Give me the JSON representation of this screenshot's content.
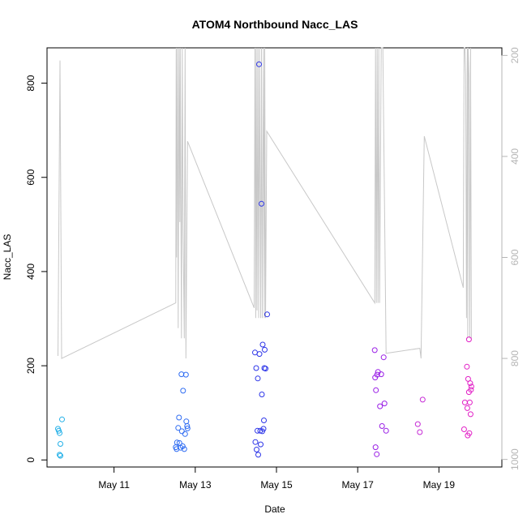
{
  "chart_data": {
    "type": "scatter",
    "title": "ATOM4 Northbound Nacc_LAS",
    "xlabel": "Date",
    "ylabel": "Nacc_LAS",
    "x_ticks": [
      {
        "day": 11,
        "label": "May 11"
      },
      {
        "day": 13,
        "label": "May 13"
      },
      {
        "day": 15,
        "label": "May 15"
      },
      {
        "day": 17,
        "label": "May 17"
      },
      {
        "day": 19,
        "label": "May 19"
      }
    ],
    "xlim": [
      9.35,
      20.55
    ],
    "ylim": [
      -15,
      875
    ],
    "y_ticks": [
      0,
      200,
      400,
      600,
      800
    ],
    "y2_ticks": [
      200,
      400,
      600,
      800,
      1000
    ],
    "y2lim": [
      1015,
      185
    ],
    "series": [
      {
        "name": "Nacc_LAS",
        "points": [
          {
            "x": 9.62,
            "y": 66,
            "color": "#22b0e8"
          },
          {
            "x": 9.64,
            "y": 62,
            "color": "#22b0e8"
          },
          {
            "x": 9.66,
            "y": 57,
            "color": "#22b0e8"
          },
          {
            "x": 9.68,
            "y": 34,
            "color": "#22b0e8"
          },
          {
            "x": 9.66,
            "y": 11,
            "color": "#22b0e8"
          },
          {
            "x": 9.68,
            "y": 9,
            "color": "#22b0e8"
          },
          {
            "x": 9.72,
            "y": 86,
            "color": "#22b0e8"
          },
          {
            "x": 12.52,
            "y": 27,
            "color": "#2f6cf2"
          },
          {
            "x": 12.54,
            "y": 23,
            "color": "#2f6cf2"
          },
          {
            "x": 12.55,
            "y": 37,
            "color": "#2f6cf2"
          },
          {
            "x": 12.58,
            "y": 68,
            "color": "#2f6cf2"
          },
          {
            "x": 12.6,
            "y": 90,
            "color": "#2f6cf2"
          },
          {
            "x": 12.61,
            "y": 36,
            "color": "#2f6cf2"
          },
          {
            "x": 12.64,
            "y": 26,
            "color": "#2f6cf2"
          },
          {
            "x": 12.66,
            "y": 182,
            "color": "#2f6cf2"
          },
          {
            "x": 12.67,
            "y": 61,
            "color": "#2f6cf2"
          },
          {
            "x": 12.69,
            "y": 29,
            "color": "#2f6cf2"
          },
          {
            "x": 12.7,
            "y": 147,
            "color": "#2f6cf2"
          },
          {
            "x": 12.73,
            "y": 23,
            "color": "#2f6cf2"
          },
          {
            "x": 12.75,
            "y": 55,
            "color": "#2f6cf2"
          },
          {
            "x": 12.77,
            "y": 181,
            "color": "#2f6cf2"
          },
          {
            "x": 12.78,
            "y": 82,
            "color": "#2f6cf2"
          },
          {
            "x": 12.8,
            "y": 72,
            "color": "#2f6cf2"
          },
          {
            "x": 12.81,
            "y": 67,
            "color": "#2f6cf2"
          },
          {
            "x": 14.47,
            "y": 228,
            "color": "#2d35e8"
          },
          {
            "x": 14.48,
            "y": 38,
            "color": "#2d35e8"
          },
          {
            "x": 14.5,
            "y": 195,
            "color": "#2d35e8"
          },
          {
            "x": 14.51,
            "y": 22,
            "color": "#2d35e8"
          },
          {
            "x": 14.53,
            "y": 62,
            "color": "#2d35e8"
          },
          {
            "x": 14.54,
            "y": 173,
            "color": "#2d35e8"
          },
          {
            "x": 14.55,
            "y": 11,
            "color": "#2d35e8"
          },
          {
            "x": 14.57,
            "y": 840,
            "color": "#2d35e8"
          },
          {
            "x": 14.58,
            "y": 225,
            "color": "#2d35e8"
          },
          {
            "x": 14.6,
            "y": 62,
            "color": "#2d35e8"
          },
          {
            "x": 14.61,
            "y": 33,
            "color": "#2d35e8"
          },
          {
            "x": 14.63,
            "y": 544,
            "color": "#2d35e8"
          },
          {
            "x": 14.64,
            "y": 139,
            "color": "#2d35e8"
          },
          {
            "x": 14.65,
            "y": 61,
            "color": "#2d35e8"
          },
          {
            "x": 14.66,
            "y": 245,
            "color": "#2d35e8"
          },
          {
            "x": 14.68,
            "y": 66,
            "color": "#2d35e8"
          },
          {
            "x": 14.69,
            "y": 84,
            "color": "#2d35e8"
          },
          {
            "x": 14.7,
            "y": 195,
            "color": "#2d35e8"
          },
          {
            "x": 14.71,
            "y": 234,
            "color": "#2d35e8"
          },
          {
            "x": 14.73,
            "y": 194,
            "color": "#2d35e8"
          },
          {
            "x": 14.77,
            "y": 309,
            "color": "#2d35e8"
          },
          {
            "x": 17.42,
            "y": 233,
            "color": "#9a1fe6"
          },
          {
            "x": 17.43,
            "y": 175,
            "color": "#9a1fe6"
          },
          {
            "x": 17.44,
            "y": 27,
            "color": "#9a1fe6"
          },
          {
            "x": 17.45,
            "y": 148,
            "color": "#9a1fe6"
          },
          {
            "x": 17.47,
            "y": 12,
            "color": "#9a1fe6"
          },
          {
            "x": 17.48,
            "y": 181,
            "color": "#9a1fe6"
          },
          {
            "x": 17.5,
            "y": 187,
            "color": "#9a1fe6"
          },
          {
            "x": 17.55,
            "y": 114,
            "color": "#9a1fe6"
          },
          {
            "x": 17.58,
            "y": 182,
            "color": "#9a1fe6"
          },
          {
            "x": 17.6,
            "y": 72,
            "color": "#9a1fe6"
          },
          {
            "x": 17.64,
            "y": 218,
            "color": "#9a1fe6"
          },
          {
            "x": 17.66,
            "y": 120,
            "color": "#9a1fe6"
          },
          {
            "x": 17.7,
            "y": 62,
            "color": "#9a1fe6"
          },
          {
            "x": 18.48,
            "y": 76,
            "color": "#c62bd6"
          },
          {
            "x": 18.53,
            "y": 59,
            "color": "#c62bd6"
          },
          {
            "x": 18.6,
            "y": 128,
            "color": "#c62bd6"
          },
          {
            "x": 19.62,
            "y": 65,
            "color": "#e21fc6"
          },
          {
            "x": 19.64,
            "y": 122,
            "color": "#e21fc6"
          },
          {
            "x": 19.69,
            "y": 198,
            "color": "#e21fc6"
          },
          {
            "x": 19.7,
            "y": 110,
            "color": "#e21fc6"
          },
          {
            "x": 19.71,
            "y": 52,
            "color": "#e21fc6"
          },
          {
            "x": 19.72,
            "y": 172,
            "color": "#e21fc6"
          },
          {
            "x": 19.74,
            "y": 256,
            "color": "#e21fc6"
          },
          {
            "x": 19.74,
            "y": 144,
            "color": "#e21fc6"
          },
          {
            "x": 19.75,
            "y": 57,
            "color": "#e21fc6"
          },
          {
            "x": 19.76,
            "y": 122,
            "color": "#e21fc6"
          },
          {
            "x": 19.77,
            "y": 163,
            "color": "#e21fc6"
          },
          {
            "x": 19.78,
            "y": 97,
            "color": "#e21fc6"
          },
          {
            "x": 19.79,
            "y": 149,
            "color": "#e21fc6"
          },
          {
            "x": 19.8,
            "y": 156,
            "color": "#e21fc6"
          }
        ]
      },
      {
        "name": "secondary (right axis, inverted)",
        "color": "#c8c8c8",
        "line": [
          [
            9.62,
            795
          ],
          [
            9.67,
            210
          ],
          [
            9.71,
            800
          ],
          [
            12.52,
            690
          ],
          [
            12.53,
            185
          ],
          [
            12.54,
            600
          ],
          [
            12.56,
            185
          ],
          [
            12.58,
            740
          ],
          [
            12.6,
            185
          ],
          [
            12.62,
            530
          ],
          [
            12.63,
            185
          ],
          [
            12.66,
            760
          ],
          [
            12.68,
            185
          ],
          [
            12.7,
            540
          ],
          [
            12.73,
            760
          ],
          [
            12.75,
            185
          ],
          [
            12.77,
            800
          ],
          [
            12.81,
            370
          ],
          [
            14.45,
            700
          ],
          [
            14.47,
            185
          ],
          [
            14.49,
            720
          ],
          [
            14.5,
            185
          ],
          [
            14.52,
            705
          ],
          [
            14.54,
            185
          ],
          [
            14.56,
            720
          ],
          [
            14.58,
            185
          ],
          [
            14.61,
            720
          ],
          [
            14.63,
            185
          ],
          [
            14.65,
            720
          ],
          [
            14.68,
            185
          ],
          [
            14.7,
            720
          ],
          [
            14.71,
            185
          ],
          [
            14.73,
            720
          ],
          [
            14.76,
            350
          ],
          [
            17.42,
            690
          ],
          [
            17.44,
            185
          ],
          [
            17.46,
            690
          ],
          [
            17.48,
            185
          ],
          [
            17.5,
            690
          ],
          [
            17.52,
            185
          ],
          [
            17.54,
            690
          ],
          [
            17.58,
            185
          ],
          [
            17.62,
            185
          ],
          [
            17.7,
            790
          ],
          [
            18.53,
            780
          ],
          [
            18.56,
            800
          ],
          [
            18.64,
            360
          ],
          [
            19.6,
            660
          ],
          [
            19.62,
            185
          ],
          [
            19.64,
            185
          ],
          [
            19.66,
            240
          ],
          [
            19.68,
            720
          ],
          [
            19.7,
            185
          ],
          [
            19.71,
            760
          ],
          [
            19.72,
            185
          ],
          [
            19.74,
            240
          ],
          [
            19.76,
            760
          ],
          [
            19.78,
            185
          ],
          [
            19.8,
            760
          ]
        ]
      }
    ]
  }
}
